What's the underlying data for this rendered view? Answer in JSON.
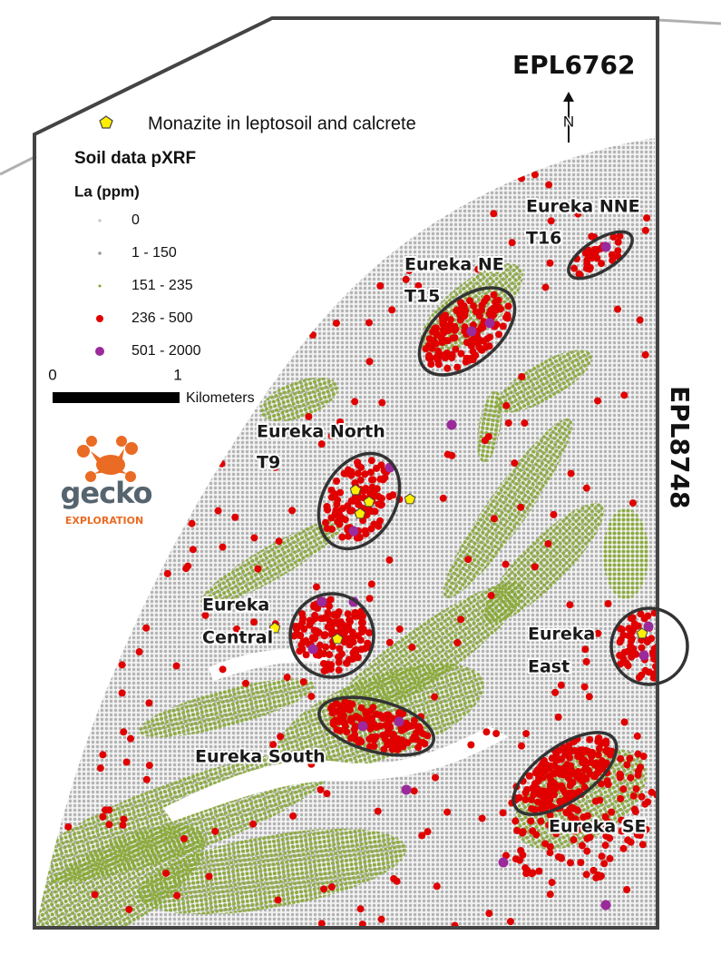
{
  "licences": [
    "EPL6762",
    "EPL8748"
  ],
  "north": "N",
  "legend": {
    "symbol_label": "Monazite in leptosoil and calcrete",
    "title": "Soil data pXRF",
    "subtitle": "La (ppm)",
    "items": [
      {
        "label": "0",
        "color": "#c4c4c4"
      },
      {
        "label": "1 - 150",
        "color": "#9a9a9a"
      },
      {
        "label": "151 - 235",
        "color": "#7fa62a"
      },
      {
        "label": "236 - 500",
        "color": "#e00000"
      },
      {
        "label": "501 - 2000",
        "color": "#9b2a9b"
      }
    ]
  },
  "scale_bar": {
    "start": "0",
    "end": "1",
    "unit": "Kilometers"
  },
  "logo": {
    "name": "gecko",
    "tagline": "EXPLORATION"
  },
  "targets": [
    {
      "lines": [
        "Eureka NNE",
        "T16"
      ]
    },
    {
      "lines": [
        "Eureka NE",
        "T15"
      ]
    },
    {
      "lines": [
        "Eureka North",
        "T9"
      ]
    },
    {
      "lines": [
        "Eureka",
        "Central"
      ]
    },
    {
      "lines": [
        "Eureka",
        "East"
      ]
    },
    {
      "lines": [
        "Eureka South"
      ]
    },
    {
      "lines": [
        "Eureka SE"
      ]
    }
  ]
}
